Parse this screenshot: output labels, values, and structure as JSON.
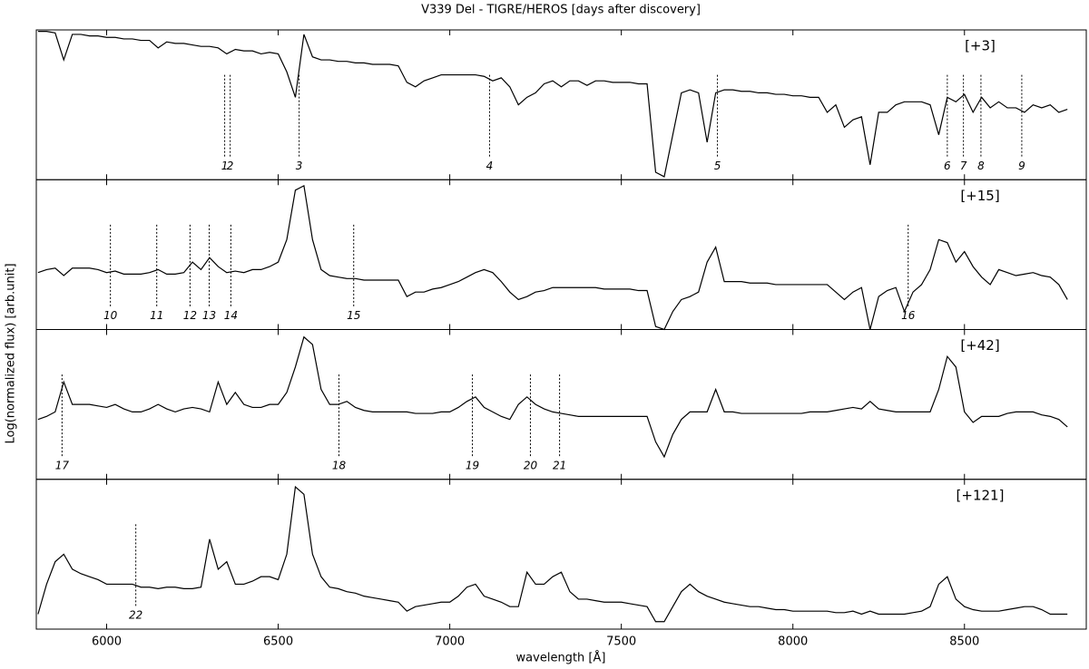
{
  "chart_data": {
    "type": "line",
    "title": "V339 Del - TIGRE/HEROS [days after discovery]",
    "xlabel": "wavelength [Å]",
    "ylabel": "Log(normalized flux) [arb.unit]",
    "xlim": [
      5795,
      8855
    ],
    "xticks": [
      6000,
      6500,
      7000,
      7500,
      8000,
      8500
    ],
    "ylim": [
      0,
      1
    ],
    "x": [
      5800,
      5825,
      5850,
      5875,
      5900,
      5925,
      5950,
      5975,
      6000,
      6025,
      6050,
      6075,
      6100,
      6125,
      6150,
      6175,
      6200,
      6225,
      6250,
      6275,
      6300,
      6325,
      6350,
      6375,
      6400,
      6425,
      6450,
      6475,
      6500,
      6525,
      6550,
      6575,
      6600,
      6625,
      6650,
      6675,
      6700,
      6725,
      6750,
      6775,
      6800,
      6825,
      6850,
      6875,
      6900,
      6925,
      6950,
      6975,
      7000,
      7025,
      7050,
      7075,
      7100,
      7125,
      7150,
      7175,
      7200,
      7225,
      7250,
      7275,
      7300,
      7325,
      7350,
      7375,
      7400,
      7425,
      7450,
      7475,
      7500,
      7525,
      7550,
      7575,
      7600,
      7625,
      7650,
      7675,
      7700,
      7725,
      7750,
      7775,
      7800,
      7825,
      7850,
      7875,
      7900,
      7925,
      7950,
      7975,
      8000,
      8025,
      8050,
      8075,
      8100,
      8125,
      8150,
      8175,
      8200,
      8225,
      8250,
      8275,
      8300,
      8325,
      8350,
      8375,
      8400,
      8425,
      8450,
      8475,
      8500,
      8525,
      8550,
      8575,
      8600,
      8625,
      8650,
      8675,
      8700,
      8725,
      8750,
      8775,
      8800
    ],
    "series": [
      {
        "name": "[+3]",
        "color": "#000000",
        "values": [
          0.99,
          0.99,
          0.98,
          0.8,
          0.97,
          0.97,
          0.96,
          0.96,
          0.95,
          0.95,
          0.94,
          0.94,
          0.93,
          0.93,
          0.88,
          0.92,
          0.91,
          0.91,
          0.9,
          0.89,
          0.89,
          0.88,
          0.84,
          0.87,
          0.86,
          0.86,
          0.84,
          0.85,
          0.84,
          0.72,
          0.55,
          0.97,
          0.82,
          0.8,
          0.8,
          0.79,
          0.79,
          0.78,
          0.78,
          0.77,
          0.77,
          0.77,
          0.76,
          0.65,
          0.62,
          0.66,
          0.68,
          0.7,
          0.7,
          0.7,
          0.7,
          0.7,
          0.69,
          0.66,
          0.68,
          0.62,
          0.5,
          0.55,
          0.58,
          0.64,
          0.66,
          0.62,
          0.66,
          0.66,
          0.63,
          0.66,
          0.66,
          0.65,
          0.65,
          0.65,
          0.64,
          0.64,
          0.05,
          0.02,
          0.3,
          0.58,
          0.6,
          0.58,
          0.25,
          0.58,
          0.6,
          0.6,
          0.59,
          0.59,
          0.58,
          0.58,
          0.57,
          0.57,
          0.56,
          0.56,
          0.55,
          0.55,
          0.45,
          0.5,
          0.35,
          0.4,
          0.42,
          0.1,
          0.45,
          0.45,
          0.5,
          0.52,
          0.52,
          0.52,
          0.5,
          0.3,
          0.55,
          0.52,
          0.57,
          0.45,
          0.55,
          0.48,
          0.52,
          0.48,
          0.48,
          0.45,
          0.5,
          0.48,
          0.5,
          0.45,
          0.47
        ],
        "lines": [
          {
            "value": 6344,
            "label": "1"
          },
          {
            "value": 6360,
            "label": "2"
          },
          {
            "value": 6561,
            "label": "3"
          },
          {
            "value": 7116,
            "label": "4"
          },
          {
            "value": 7780,
            "label": "5"
          },
          {
            "value": 8450,
            "label": "6"
          },
          {
            "value": 8497,
            "label": "7"
          },
          {
            "value": 8548,
            "label": "8"
          },
          {
            "value": 8667,
            "label": "9"
          }
        ]
      },
      {
        "name": "[+15]",
        "color": "#000000",
        "values": [
          0.38,
          0.4,
          0.41,
          0.36,
          0.41,
          0.41,
          0.41,
          0.4,
          0.38,
          0.39,
          0.37,
          0.37,
          0.37,
          0.38,
          0.4,
          0.37,
          0.37,
          0.38,
          0.45,
          0.4,
          0.48,
          0.42,
          0.38,
          0.39,
          0.38,
          0.4,
          0.4,
          0.42,
          0.45,
          0.6,
          0.93,
          0.96,
          0.6,
          0.4,
          0.36,
          0.35,
          0.34,
          0.34,
          0.33,
          0.33,
          0.33,
          0.33,
          0.33,
          0.22,
          0.25,
          0.25,
          0.27,
          0.28,
          0.3,
          0.32,
          0.35,
          0.38,
          0.4,
          0.38,
          0.32,
          0.25,
          0.2,
          0.22,
          0.25,
          0.26,
          0.28,
          0.28,
          0.28,
          0.28,
          0.28,
          0.28,
          0.27,
          0.27,
          0.27,
          0.27,
          0.26,
          0.26,
          0.02,
          0.0,
          0.12,
          0.2,
          0.22,
          0.25,
          0.45,
          0.55,
          0.32,
          0.32,
          0.32,
          0.31,
          0.31,
          0.31,
          0.3,
          0.3,
          0.3,
          0.3,
          0.3,
          0.3,
          0.3,
          0.25,
          0.2,
          0.25,
          0.28,
          0.0,
          0.22,
          0.26,
          0.28,
          0.12,
          0.25,
          0.3,
          0.4,
          0.6,
          0.58,
          0.45,
          0.52,
          0.42,
          0.35,
          0.3,
          0.4,
          0.38,
          0.36,
          0.37,
          0.38,
          0.36,
          0.35,
          0.3,
          0.2
        ],
        "lines": [
          {
            "value": 6011,
            "label": "10"
          },
          {
            "value": 6146,
            "label": "11"
          },
          {
            "value": 6243,
            "label": "12"
          },
          {
            "value": 6299,
            "label": "13"
          },
          {
            "value": 6362,
            "label": "14"
          },
          {
            "value": 6720,
            "label": "15"
          },
          {
            "value": 8336,
            "label": "16"
          }
        ]
      },
      {
        "name": "[+42]",
        "color": "#000000",
        "values": [
          0.4,
          0.42,
          0.45,
          0.65,
          0.5,
          0.5,
          0.5,
          0.49,
          0.48,
          0.5,
          0.47,
          0.45,
          0.45,
          0.47,
          0.5,
          0.47,
          0.45,
          0.47,
          0.48,
          0.47,
          0.45,
          0.65,
          0.5,
          0.58,
          0.5,
          0.48,
          0.48,
          0.5,
          0.5,
          0.58,
          0.75,
          0.95,
          0.9,
          0.6,
          0.5,
          0.5,
          0.52,
          0.48,
          0.46,
          0.45,
          0.45,
          0.45,
          0.45,
          0.45,
          0.44,
          0.44,
          0.44,
          0.45,
          0.45,
          0.48,
          0.52,
          0.55,
          0.48,
          0.45,
          0.42,
          0.4,
          0.5,
          0.55,
          0.5,
          0.47,
          0.45,
          0.44,
          0.43,
          0.42,
          0.42,
          0.42,
          0.42,
          0.42,
          0.42,
          0.42,
          0.42,
          0.42,
          0.25,
          0.15,
          0.3,
          0.4,
          0.45,
          0.45,
          0.45,
          0.6,
          0.45,
          0.45,
          0.44,
          0.44,
          0.44,
          0.44,
          0.44,
          0.44,
          0.44,
          0.44,
          0.45,
          0.45,
          0.45,
          0.46,
          0.47,
          0.48,
          0.47,
          0.52,
          0.47,
          0.46,
          0.45,
          0.45,
          0.45,
          0.45,
          0.45,
          0.6,
          0.82,
          0.75,
          0.45,
          0.38,
          0.42,
          0.42,
          0.42,
          0.44,
          0.45,
          0.45,
          0.45,
          0.43,
          0.42,
          0.4,
          0.35
        ],
        "lines": [
          {
            "value": 5870,
            "label": "17"
          },
          {
            "value": 6677,
            "label": "18"
          },
          {
            "value": 7066,
            "label": "19"
          },
          {
            "value": 7235,
            "label": "20"
          },
          {
            "value": 7320,
            "label": "21"
          }
        ]
      },
      {
        "name": "[+121]",
        "color": "#000000",
        "values": [
          0.1,
          0.3,
          0.45,
          0.5,
          0.4,
          0.37,
          0.35,
          0.33,
          0.3,
          0.3,
          0.3,
          0.3,
          0.28,
          0.28,
          0.27,
          0.28,
          0.28,
          0.27,
          0.27,
          0.28,
          0.6,
          0.4,
          0.45,
          0.3,
          0.3,
          0.32,
          0.35,
          0.35,
          0.33,
          0.5,
          0.95,
          0.9,
          0.5,
          0.35,
          0.28,
          0.27,
          0.25,
          0.24,
          0.22,
          0.21,
          0.2,
          0.19,
          0.18,
          0.12,
          0.15,
          0.16,
          0.17,
          0.18,
          0.18,
          0.22,
          0.28,
          0.3,
          0.22,
          0.2,
          0.18,
          0.15,
          0.15,
          0.38,
          0.3,
          0.3,
          0.35,
          0.38,
          0.25,
          0.2,
          0.2,
          0.19,
          0.18,
          0.18,
          0.18,
          0.17,
          0.16,
          0.15,
          0.05,
          0.05,
          0.15,
          0.25,
          0.3,
          0.25,
          0.22,
          0.2,
          0.18,
          0.17,
          0.16,
          0.15,
          0.15,
          0.14,
          0.13,
          0.13,
          0.12,
          0.12,
          0.12,
          0.12,
          0.12,
          0.11,
          0.11,
          0.12,
          0.1,
          0.12,
          0.1,
          0.1,
          0.1,
          0.1,
          0.11,
          0.12,
          0.15,
          0.3,
          0.35,
          0.2,
          0.15,
          0.13,
          0.12,
          0.12,
          0.12,
          0.13,
          0.14,
          0.15,
          0.15,
          0.13,
          0.1,
          0.1,
          0.1
        ],
        "lines": [
          {
            "value": 6085,
            "label": "22"
          }
        ]
      }
    ]
  }
}
